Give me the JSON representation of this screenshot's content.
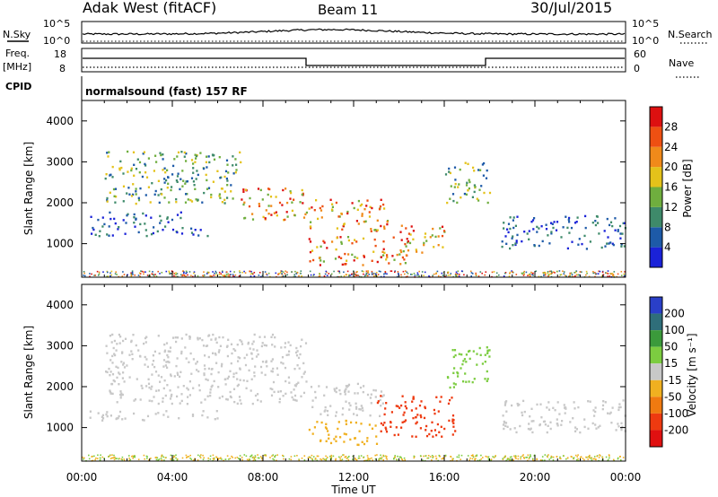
{
  "header": {
    "site": "Adak West (fitACF)",
    "beam": "Beam 11",
    "date": "30/Jul/2015"
  },
  "panels": {
    "noise": {
      "left_label": "N.Sky",
      "right_label": "N.Search",
      "left_ticks": [
        "10^5",
        "10^0"
      ],
      "right_ticks": [
        "10^5",
        "10^0"
      ]
    },
    "frequency": {
      "left_label_1": "Freq.",
      "left_label_2": "[MHz]",
      "right_label": "Nave",
      "left_ticks": [
        "18",
        "8"
      ],
      "right_ticks": [
        "60",
        "0"
      ]
    },
    "cpid": {
      "label": "CPID",
      "value": "normalsound (fast) 157 RF"
    }
  },
  "chart_data": [
    {
      "type": "heatmap",
      "name": "power",
      "ylabel": "Slant Range [km]",
      "ylim": [
        180,
        4500
      ],
      "xlim": [
        "00:00",
        "24:00"
      ],
      "yticks": [
        "1000",
        "2000",
        "3000",
        "4000"
      ],
      "xticks": [
        "00:00",
        "04:00",
        "08:00",
        "12:00",
        "16:00",
        "20:00",
        "00:00"
      ],
      "colorbar": {
        "label": "Power [dB]",
        "ticks": [
          "4",
          "8",
          "12",
          "16",
          "20",
          "24",
          "28"
        ],
        "colors": [
          "#1a22d8",
          "#1d5aa8",
          "#3e8a6a",
          "#6fae3e",
          "#e4c21a",
          "#f08a1a",
          "#ee5012",
          "#dd1010"
        ]
      },
      "echo_regions": [
        {
          "t": [
            0.3,
            6.0
          ],
          "range": [
            1200,
            1450
          ],
          "level": "low"
        },
        {
          "t": [
            0.3,
            4.5
          ],
          "range": [
            1500,
            1800
          ],
          "level": "low"
        },
        {
          "t": [
            1.0,
            7.0
          ],
          "range": [
            2000,
            3300
          ],
          "level": "mid"
        },
        {
          "t": [
            7.0,
            10.0
          ],
          "range": [
            1600,
            2400
          ],
          "level": "high"
        },
        {
          "t": [
            10.0,
            13.5
          ],
          "range": [
            1300,
            2100
          ],
          "level": "high"
        },
        {
          "t": [
            10.0,
            14.5
          ],
          "range": [
            500,
            1200
          ],
          "level": "high"
        },
        {
          "t": [
            14.0,
            16.0
          ],
          "range": [
            800,
            1500
          ],
          "level": "high"
        },
        {
          "t": [
            16.0,
            18.0
          ],
          "range": [
            2000,
            3000
          ],
          "level": "mid"
        },
        {
          "t": [
            18.5,
            24.0
          ],
          "range": [
            900,
            1700
          ],
          "level": "low"
        }
      ]
    },
    {
      "type": "heatmap",
      "name": "velocity",
      "ylabel": "Slant Range [km]",
      "xlabel": "Time UT",
      "ylim": [
        180,
        4500
      ],
      "xlim": [
        "00:00",
        "24:00"
      ],
      "yticks": [
        "1000",
        "2000",
        "3000",
        "4000"
      ],
      "xticks": [
        "00:00",
        "04:00",
        "08:00",
        "12:00",
        "16:00",
        "20:00",
        "00:00"
      ],
      "colorbar": {
        "label": "Velocity [m s⁻¹]",
        "ticks": [
          "200",
          "100",
          "50",
          "15",
          "-15",
          "-50",
          "-100",
          "-200"
        ],
        "colors": [
          "#2a3fc8",
          "#2f6e7a",
          "#3b9a3b",
          "#7ccc40",
          "#c8c8c8",
          "#f0b020",
          "#f07a10",
          "#ee3a10",
          "#e01010"
        ]
      },
      "echo_regions": [
        {
          "t": [
            0.3,
            6.0
          ],
          "range": [
            1200,
            1450
          ],
          "velocity": 0
        },
        {
          "t": [
            1.0,
            10.0
          ],
          "range": [
            1600,
            3300
          ],
          "velocity": 0
        },
        {
          "t": [
            10.0,
            13.5
          ],
          "range": [
            1300,
            2100
          ],
          "velocity": 0
        },
        {
          "t": [
            10.0,
            13.0
          ],
          "range": [
            600,
            1200
          ],
          "velocity": -40
        },
        {
          "t": [
            13.0,
            16.5
          ],
          "range": [
            800,
            1800
          ],
          "velocity": -120
        },
        {
          "t": [
            16.0,
            18.0
          ],
          "range": [
            2000,
            3000
          ],
          "velocity": 30
        },
        {
          "t": [
            18.5,
            24.0
          ],
          "range": [
            900,
            1700
          ],
          "velocity": 0
        }
      ]
    }
  ]
}
